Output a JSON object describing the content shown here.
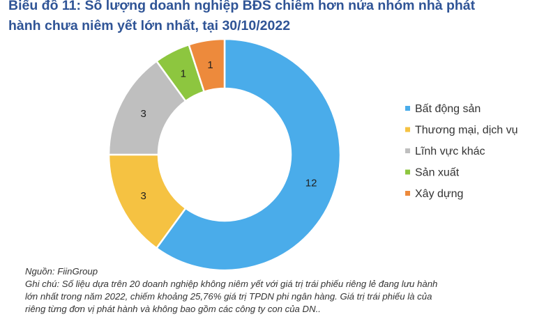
{
  "title": "Biểu đồ 11: Số lượng doanh nghiệp BĐS chiếm hơn nửa nhóm nhà phát\nhành chưa niêm yết lớn nhất, tại 30/10/2022",
  "chart_data": {
    "type": "pie",
    "donut": true,
    "categories": [
      "Bất động sản",
      "Thương mại, dịch vụ",
      "Lĩnh vực khác",
      "Sản xuất",
      "Xây dựng"
    ],
    "values": [
      12,
      3,
      3,
      1,
      1
    ],
    "colors": [
      "#4aacea",
      "#f5c242",
      "#bfbfbf",
      "#8dc63f",
      "#ed8a3c"
    ],
    "legend_position": "right"
  },
  "footer": {
    "source": "Nguồn: FiinGroup",
    "note_lines": [
      "Ghi chú: Số liệu dựa trên 20 doanh nghiệp không niêm yết với giá trị trái phiếu riêng lẻ đang lưu hành",
      "lớn nhất trong năm 2022, chiếm khoảng 25,76% giá trị TPDN phi ngân hàng. Giá trị trái phiếu là của",
      "riêng từng đơn vị phát hành và không bao gồm các công ty con của DN.."
    ]
  }
}
